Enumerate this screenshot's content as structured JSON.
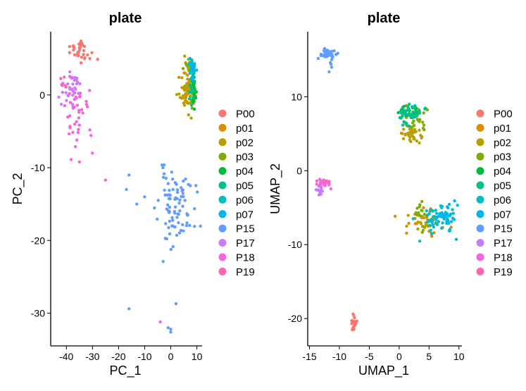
{
  "chart_data": [
    {
      "type": "scatter",
      "title": "plate",
      "xlabel": "PC_1",
      "ylabel": "PC_2",
      "xlim": [
        -46,
        12
      ],
      "ylim": [
        -34.5,
        8.7
      ],
      "xticks": [
        -40,
        -30,
        -20,
        -10,
        0,
        10
      ],
      "yticks": [
        -30,
        -20,
        -10,
        0
      ],
      "grid": false,
      "legend": "right",
      "series": [
        {
          "name": "P00",
          "color": "#F8766D",
          "clusters": [
            {
              "cx": -35.5,
              "cy": 6.0,
              "sx": 2.0,
              "sy": 0.7,
              "n": 32,
              "seed": 1
            }
          ],
          "points": [
            [
              -31,
              5.0
            ],
            [
              -28,
              4.9
            ],
            [
              -33,
              5.0
            ]
          ]
        },
        {
          "name": "p01",
          "color": "#DE8C00",
          "clusters": [
            {
              "cx": 6.0,
              "cy": 0.6,
              "sx": 1.2,
              "sy": 0.9,
              "n": 18,
              "seed": 2
            }
          ]
        },
        {
          "name": "p02",
          "color": "#B79F00",
          "clusters": [
            {
              "cx": 6.6,
              "cy": 0.5,
              "sx": 1.5,
              "sy": 1.2,
              "n": 45,
              "seed": 3
            },
            {
              "cx": 7.0,
              "cy": 4.0,
              "sx": 1.0,
              "sy": 0.6,
              "n": 10,
              "seed": 4
            }
          ]
        },
        {
          "name": "p03",
          "color": "#7CAE00",
          "clusters": [
            {
              "cx": 6.8,
              "cy": 4.1,
              "sx": 1.1,
              "sy": 0.6,
              "n": 14,
              "seed": 5
            },
            {
              "cx": 8.0,
              "cy": -0.5,
              "sx": 0.6,
              "sy": 0.8,
              "n": 8,
              "seed": 6
            }
          ]
        },
        {
          "name": "p04",
          "color": "#00BA38",
          "clusters": [
            {
              "cx": 8.7,
              "cy": 0.5,
              "sx": 0.4,
              "sy": 1.2,
              "n": 22,
              "seed": 7
            }
          ]
        },
        {
          "name": "p05",
          "color": "#00C08B",
          "clusters": [
            {
              "cx": 8.4,
              "cy": 0.9,
              "sx": 0.5,
              "sy": 1.0,
              "n": 18,
              "seed": 8
            }
          ]
        },
        {
          "name": "p06",
          "color": "#00BFC4",
          "clusters": [
            {
              "cx": 8.3,
              "cy": 3.5,
              "sx": 0.7,
              "sy": 0.7,
              "n": 20,
              "seed": 9
            }
          ]
        },
        {
          "name": "p07",
          "color": "#00B4F0",
          "clusters": [
            {
              "cx": 8.6,
              "cy": 3.2,
              "sx": 0.5,
              "sy": 0.8,
              "n": 14,
              "seed": 10
            }
          ]
        },
        {
          "name": "P15",
          "color": "#619CFF",
          "clusters": [
            {
              "cx": 2.0,
              "cy": -15.5,
              "sx": 3.5,
              "sy": 2.6,
              "n": 85,
              "seed": 11
            }
          ],
          "points": [
            [
              -17,
              -13
            ],
            [
              -16,
              -11
            ],
            [
              -13,
              -15
            ],
            [
              -10,
              -14
            ],
            [
              -3,
              -10
            ],
            [
              -16,
              -29.4
            ],
            [
              2,
              -28.7
            ],
            [
              0,
              -32.2
            ],
            [
              0,
              -32.6
            ],
            [
              -1,
              -32
            ]
          ]
        },
        {
          "name": "P17",
          "color": "#C77CFF",
          "clusters": [
            {
              "cx": -38.5,
              "cy": 0.8,
              "sx": 2.0,
              "sy": 1.0,
              "n": 35,
              "seed": 12
            }
          ]
        },
        {
          "name": "P18",
          "color": "#F564E3",
          "clusters": [
            {
              "cx": -37.0,
              "cy": -2.5,
              "sx": 2.5,
              "sy": 2.3,
              "n": 38,
              "seed": 13
            }
          ],
          "points": [
            [
              -31,
              -4.8
            ],
            [
              -36,
              -6.2
            ],
            [
              -30,
              -8.0
            ],
            [
              -35,
              -9.2
            ],
            [
              -25,
              -11.7
            ],
            [
              -4,
              -31.2
            ]
          ]
        },
        {
          "name": "P19",
          "color": "#FF64B0",
          "clusters": [
            {
              "cx": -41.0,
              "cy": 1.8,
              "sx": 0.7,
              "sy": 0.5,
              "n": 5,
              "seed": 14
            }
          ]
        }
      ]
    },
    {
      "type": "scatter",
      "title": "plate",
      "xlabel": "UMAP_1",
      "ylabel": "UMAP_2",
      "xlim": [
        -15.3,
        10.5
      ],
      "ylim": [
        -23.7,
        18.8
      ],
      "xticks": [
        -15,
        -10,
        -5,
        0,
        5,
        10
      ],
      "yticks": [
        -20,
        -10,
        0,
        10
      ],
      "grid": false,
      "legend": "right",
      "series": [
        {
          "name": "P00",
          "color": "#F8766D",
          "clusters": [
            {
              "cx": -7.6,
              "cy": -20.7,
              "sx": 0.2,
              "sy": 0.7,
              "n": 20,
              "seed": 21
            }
          ]
        },
        {
          "name": "p01",
          "color": "#DE8C00",
          "clusters": [
            {
              "cx": 4.0,
              "cy": -6.8,
              "sx": 1.5,
              "sy": 0.9,
              "n": 20,
              "seed": 22
            }
          ]
        },
        {
          "name": "p02",
          "color": "#B79F00",
          "clusters": [
            {
              "cx": 1.8,
              "cy": 5.0,
              "sx": 0.9,
              "sy": 0.7,
              "n": 40,
              "seed": 23
            },
            {
              "cx": 4.5,
              "cy": -7.0,
              "sx": 1.6,
              "sy": 0.9,
              "n": 25,
              "seed": 24
            }
          ]
        },
        {
          "name": "p03",
          "color": "#7CAE00",
          "clusters": [
            {
              "cx": 2.5,
              "cy": 7.0,
              "sx": 1.2,
              "sy": 1.0,
              "n": 25,
              "seed": 25
            },
            {
              "cx": 3.5,
              "cy": -6.0,
              "sx": 0.8,
              "sy": 1.2,
              "n": 14,
              "seed": 26
            }
          ]
        },
        {
          "name": "p04",
          "color": "#00BA38",
          "clusters": [
            {
              "cx": 1.5,
              "cy": 7.8,
              "sx": 1.0,
              "sy": 0.5,
              "n": 18,
              "seed": 27
            }
          ]
        },
        {
          "name": "p05",
          "color": "#00C08B",
          "clusters": [
            {
              "cx": 2.0,
              "cy": 7.6,
              "sx": 1.3,
              "sy": 0.7,
              "n": 45,
              "seed": 28
            }
          ]
        },
        {
          "name": "p06",
          "color": "#00BFC4",
          "clusters": [
            {
              "cx": 6.3,
              "cy": -6.2,
              "sx": 1.6,
              "sy": 1.0,
              "n": 45,
              "seed": 29
            }
          ]
        },
        {
          "name": "p07",
          "color": "#00B4F0",
          "clusters": [
            {
              "cx": 7.6,
              "cy": -6.5,
              "sx": 1.2,
              "sy": 1.0,
              "n": 35,
              "seed": 30
            }
          ]
        },
        {
          "name": "P15",
          "color": "#619CFF",
          "clusters": [
            {
              "cx": -12.0,
              "cy": 15.9,
              "sx": 0.6,
              "sy": 0.3,
              "n": 45,
              "seed": 31
            },
            {
              "cx": -11.3,
              "cy": 14.8,
              "sx": 0.4,
              "sy": 0.5,
              "n": 8,
              "seed": 32
            }
          ]
        },
        {
          "name": "P17",
          "color": "#C77CFF",
          "clusters": [
            {
              "cx": -13.3,
              "cy": -2.5,
              "sx": 0.4,
              "sy": 0.5,
              "n": 14,
              "seed": 33
            }
          ]
        },
        {
          "name": "P18",
          "color": "#F564E3",
          "clusters": [
            {
              "cx": -12.7,
              "cy": -1.6,
              "sx": 0.7,
              "sy": 0.3,
              "n": 22,
              "seed": 34
            }
          ]
        },
        {
          "name": "P19",
          "color": "#FF64B0",
          "clusters": [
            {
              "cx": -12.2,
              "cy": -1.5,
              "sx": 0.5,
              "sy": 0.2,
              "n": 6,
              "seed": 35
            }
          ]
        }
      ]
    }
  ]
}
